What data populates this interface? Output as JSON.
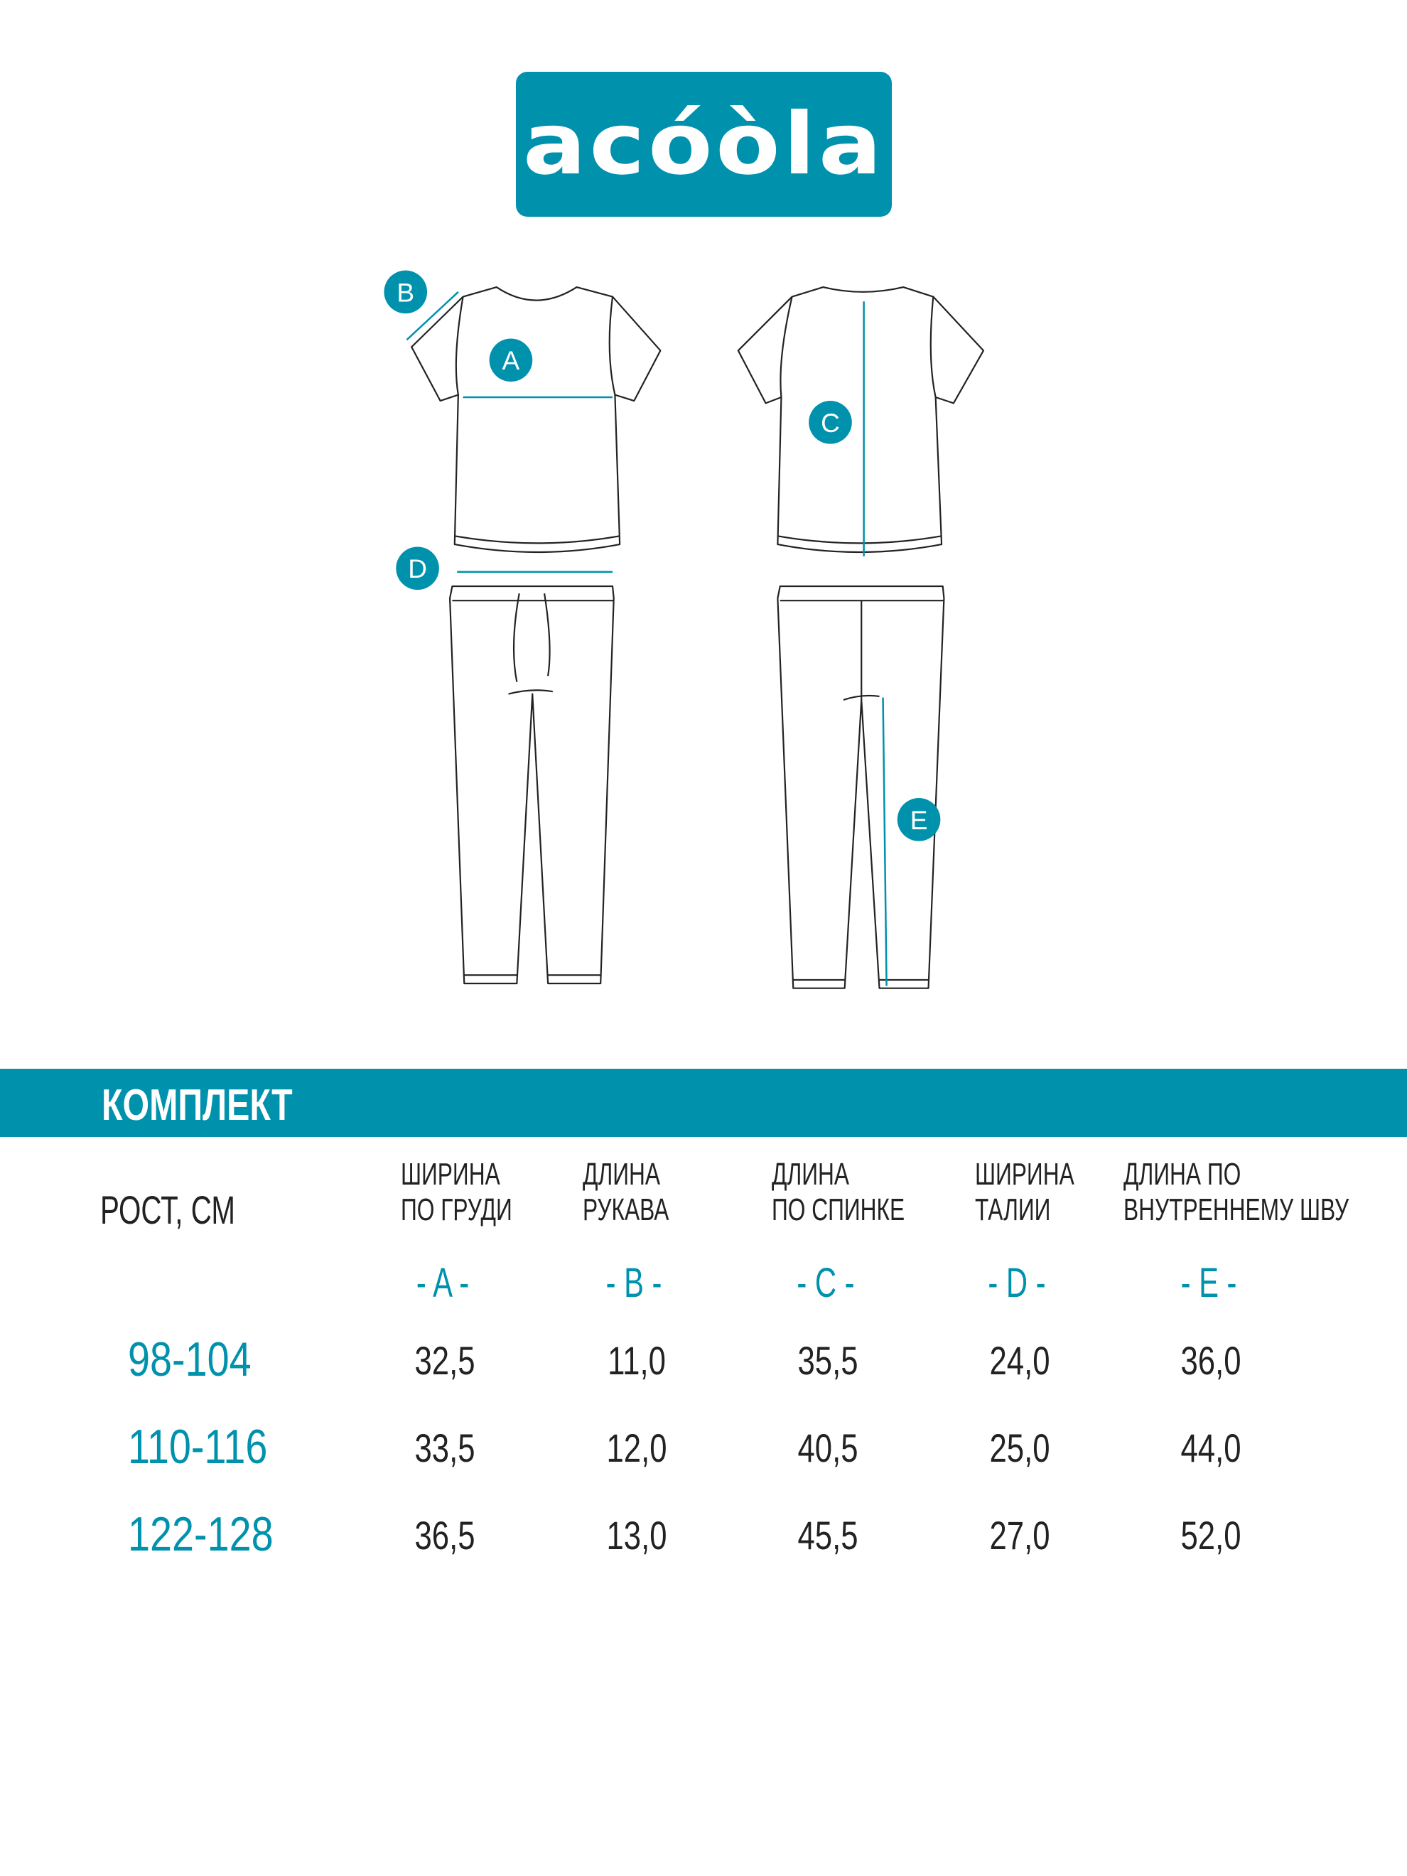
{
  "brand": {
    "logo_text": "acóòla",
    "color": "#0092ad"
  },
  "diagram": {
    "markers": [
      "A",
      "B",
      "C",
      "D",
      "E"
    ]
  },
  "table": {
    "title": "КОМПЛЕКТ",
    "row_header": "РОСТ, СМ",
    "columns": [
      {
        "line1": "ШИРИНА",
        "line2": "ПО ГРУДИ",
        "letter": "- A -"
      },
      {
        "line1": "ДЛИНА",
        "line2": "РУКАВА",
        "letter": "- B -"
      },
      {
        "line1": "ДЛИНА",
        "line2": "ПО СПИНКЕ",
        "letter": "- C -"
      },
      {
        "line1": "ШИРИНА",
        "line2": "ТАЛИИ",
        "letter": "- D -"
      },
      {
        "line1": "ДЛИНА ПО",
        "line2": "ВНУТРЕННЕМУ ШВУ",
        "letter": "- E -"
      }
    ],
    "rows": [
      {
        "size": "98-104",
        "values": [
          "32,5",
          "11,0",
          "35,5",
          "24,0",
          "36,0"
        ]
      },
      {
        "size": "110-116",
        "values": [
          "33,5",
          "12,0",
          "40,5",
          "25,0",
          "44,0"
        ]
      },
      {
        "size": "122-128",
        "values": [
          "36,5",
          "13,0",
          "45,5",
          "27,0",
          "52,0"
        ]
      }
    ]
  }
}
